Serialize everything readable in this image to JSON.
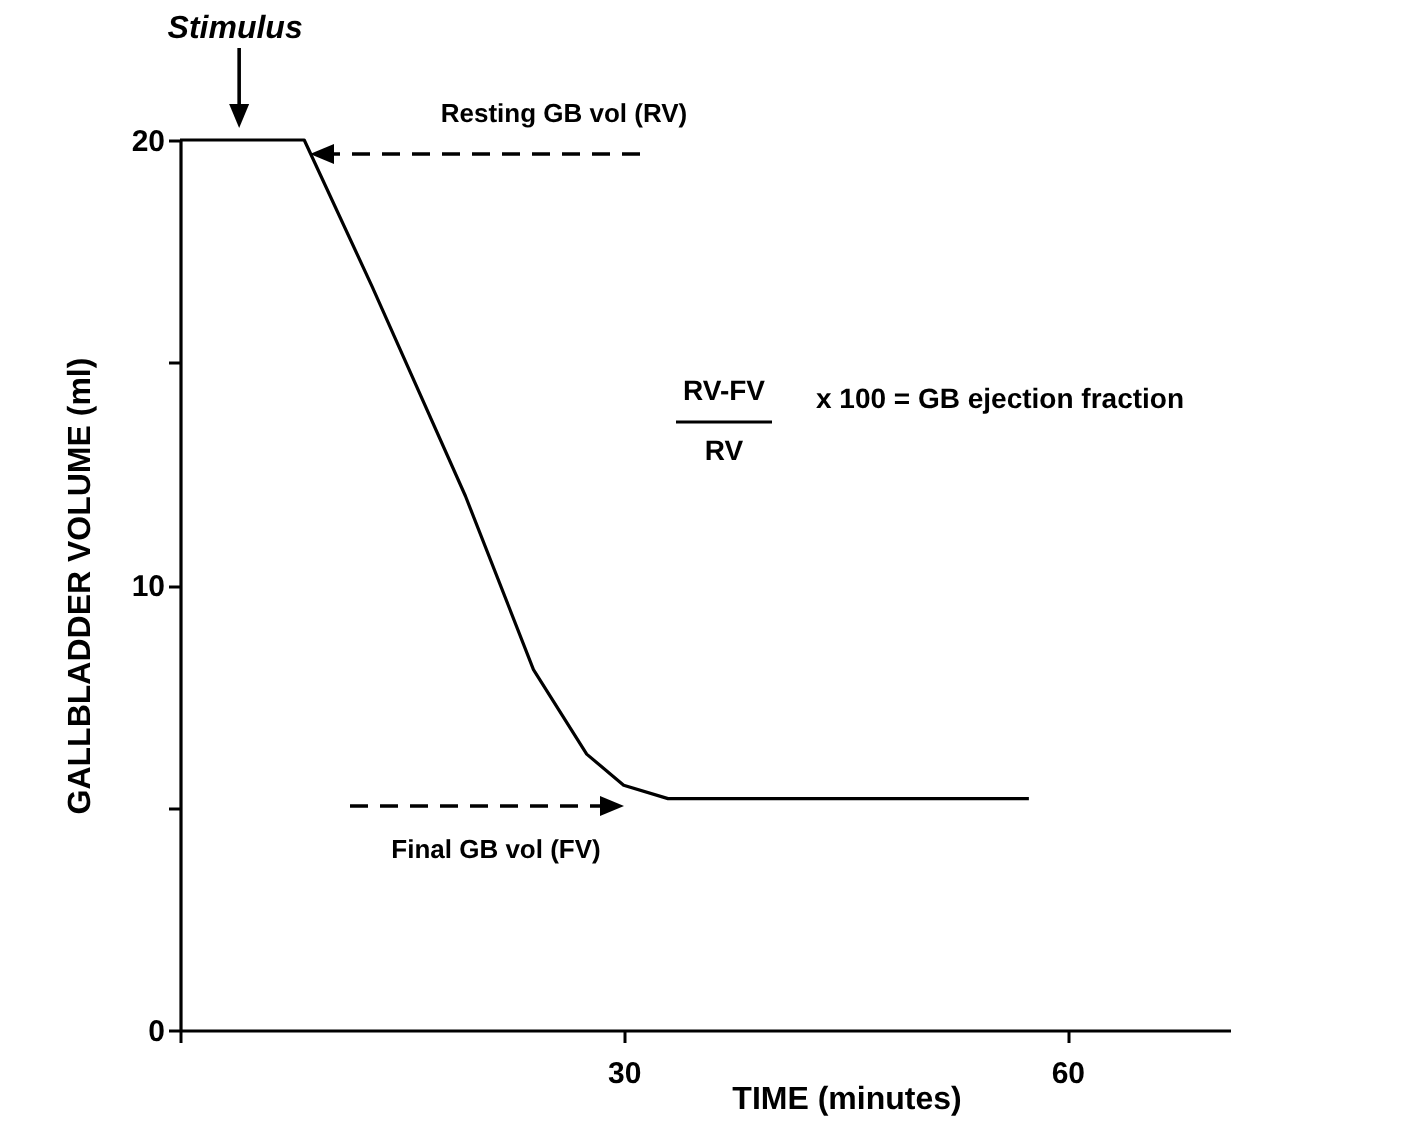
{
  "chart_data": {
    "type": "line",
    "xlabel": "TIME (minutes)",
    "ylabel": "GALLBLADDER VOLUME (ml)",
    "x": [
      0,
      8.4,
      13,
      19.3,
      23.9,
      27.5,
      30,
      33,
      57.4
    ],
    "series": [
      {
        "color": "#000000",
        "values": [
          20,
          20,
          16.7,
          12,
          8.1,
          6.2,
          5.5,
          5.2,
          5.2
        ]
      }
    ],
    "xlim": [
      0,
      71
    ],
    "xticks": [
      {
        "value": 0,
        "label": null
      },
      30,
      60
    ],
    "ylim": [
      0,
      20
    ],
    "yticks": [
      0,
      {
        "value": 5,
        "label": null
      },
      10,
      {
        "value": 15,
        "label": null
      },
      20
    ],
    "grid": false,
    "marker": "none",
    "line_style": "solid",
    "annotations": [
      {
        "text": "Stimulus",
        "x": 4,
        "y": 20
      },
      "Resting GB vol (RV)",
      "Final GB vol (FV)",
      "RV-FV",
      "RV",
      "x 100 = GB ejection fraction"
    ]
  }
}
